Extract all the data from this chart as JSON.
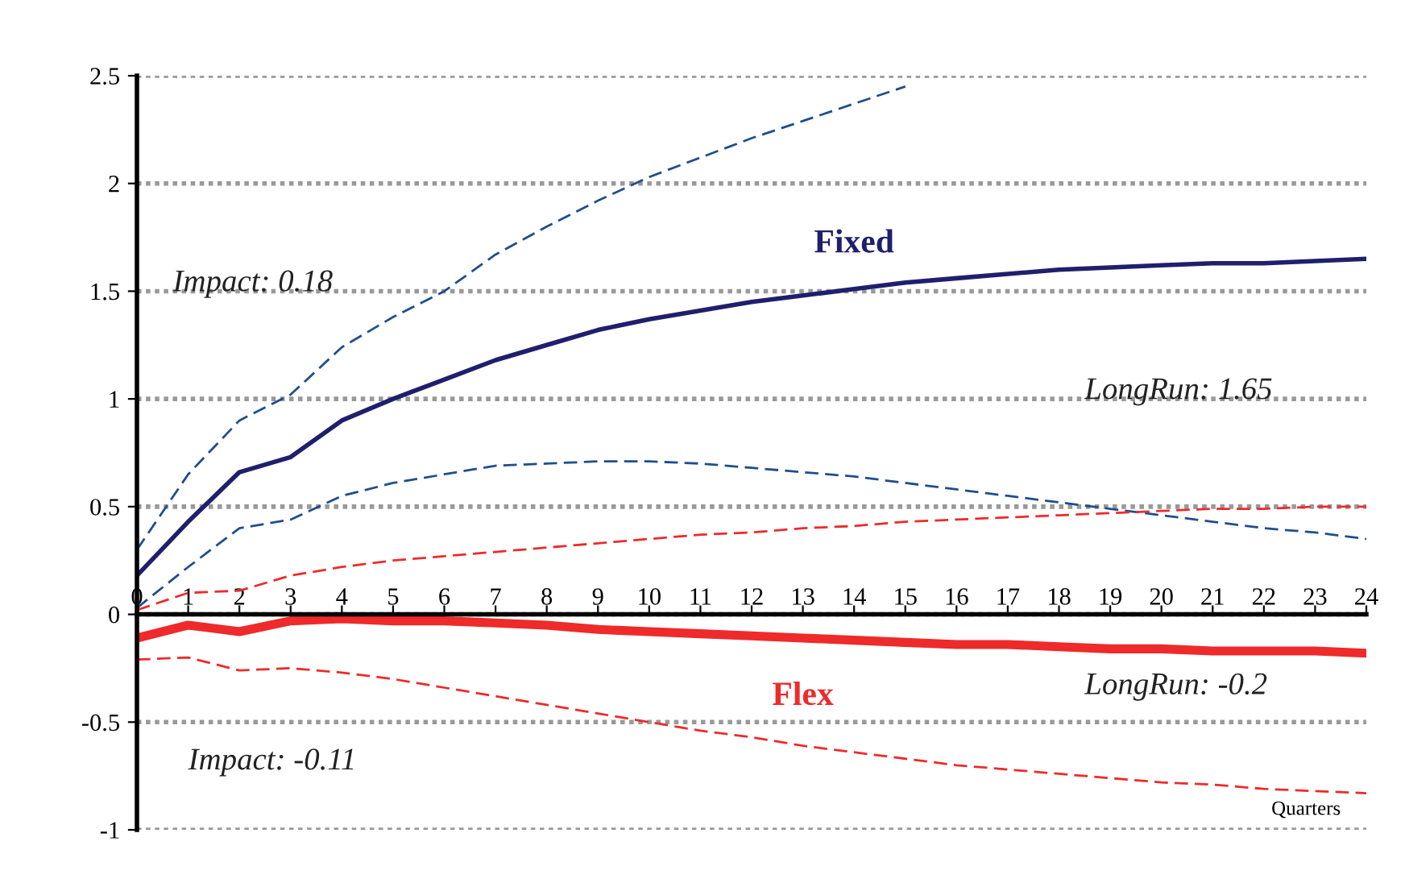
{
  "chart_data": {
    "type": "line",
    "x": [
      0,
      1,
      2,
      3,
      4,
      5,
      6,
      7,
      8,
      9,
      10,
      11,
      12,
      13,
      14,
      15,
      16,
      17,
      18,
      19,
      20,
      21,
      22,
      23,
      24
    ],
    "series": [
      {
        "name": "Fixed",
        "color": "#1f1f6e",
        "line_style": "solid",
        "values": [
          0.18,
          0.43,
          0.66,
          0.73,
          0.9,
          1.0,
          1.09,
          1.18,
          1.25,
          1.32,
          1.37,
          1.41,
          1.45,
          1.48,
          1.51,
          1.54,
          1.56,
          1.58,
          1.6,
          1.61,
          1.62,
          1.63,
          1.63,
          1.64,
          1.65
        ]
      },
      {
        "color": "#1f4e8c",
        "line_style": "dashed",
        "values": [
          0.3,
          0.65,
          0.9,
          1.02,
          1.24,
          1.38,
          1.5,
          1.67,
          1.8,
          1.92,
          2.03,
          2.12,
          2.21,
          2.29,
          2.37,
          2.45,
          null,
          null,
          null,
          null,
          null,
          null,
          null,
          null,
          null
        ]
      },
      {
        "color": "#1f4e8c",
        "line_style": "dashed",
        "values": [
          0.03,
          0.22,
          0.4,
          0.44,
          0.55,
          0.61,
          0.65,
          0.69,
          0.7,
          0.71,
          0.71,
          0.7,
          0.68,
          0.66,
          0.64,
          0.61,
          0.58,
          0.55,
          0.52,
          0.49,
          0.46,
          0.43,
          0.4,
          0.38,
          0.35
        ]
      },
      {
        "name": "Flex",
        "color": "#ee2a2a",
        "line_style": "solid",
        "values": [
          -0.11,
          -0.05,
          -0.08,
          -0.03,
          -0.02,
          -0.03,
          -0.03,
          -0.04,
          -0.05,
          -0.07,
          -0.08,
          -0.09,
          -0.1,
          -0.11,
          -0.12,
          -0.13,
          -0.14,
          -0.14,
          -0.15,
          -0.16,
          -0.16,
          -0.17,
          -0.17,
          -0.17,
          -0.18
        ]
      },
      {
        "color": "#ee2a2a",
        "line_style": "dashed",
        "values": [
          0.02,
          0.1,
          0.11,
          0.18,
          0.22,
          0.25,
          0.27,
          0.29,
          0.31,
          0.33,
          0.35,
          0.37,
          0.38,
          0.4,
          0.41,
          0.43,
          0.44,
          0.45,
          0.46,
          0.47,
          0.48,
          0.49,
          0.49,
          0.5,
          0.5
        ]
      },
      {
        "color": "#ee2a2a",
        "line_style": "dashed",
        "values": [
          -0.21,
          -0.2,
          -0.26,
          -0.25,
          -0.27,
          -0.3,
          -0.34,
          -0.38,
          -0.42,
          -0.46,
          -0.5,
          -0.54,
          -0.57,
          -0.61,
          -0.64,
          -0.67,
          -0.7,
          -0.72,
          -0.74,
          -0.76,
          -0.78,
          -0.79,
          -0.81,
          -0.82,
          -0.83
        ]
      }
    ],
    "xlabel": "Quarters",
    "xlim": [
      0,
      24
    ],
    "xticks": [
      0,
      1,
      2,
      3,
      4,
      5,
      6,
      7,
      8,
      9,
      10,
      11,
      12,
      13,
      14,
      15,
      16,
      17,
      18,
      19,
      20,
      21,
      22,
      23,
      24
    ],
    "ylim": [
      -1,
      2.5
    ],
    "yticks": [
      -1,
      -0.5,
      0,
      0.5,
      1,
      1.5,
      2,
      2.5
    ],
    "grid": "y",
    "legend": false,
    "marker": "none",
    "annotations": [
      "Impact: 0.18",
      "LongRun: 1.65",
      "Impact: -0.11",
      "LongRun: -0.2"
    ]
  }
}
